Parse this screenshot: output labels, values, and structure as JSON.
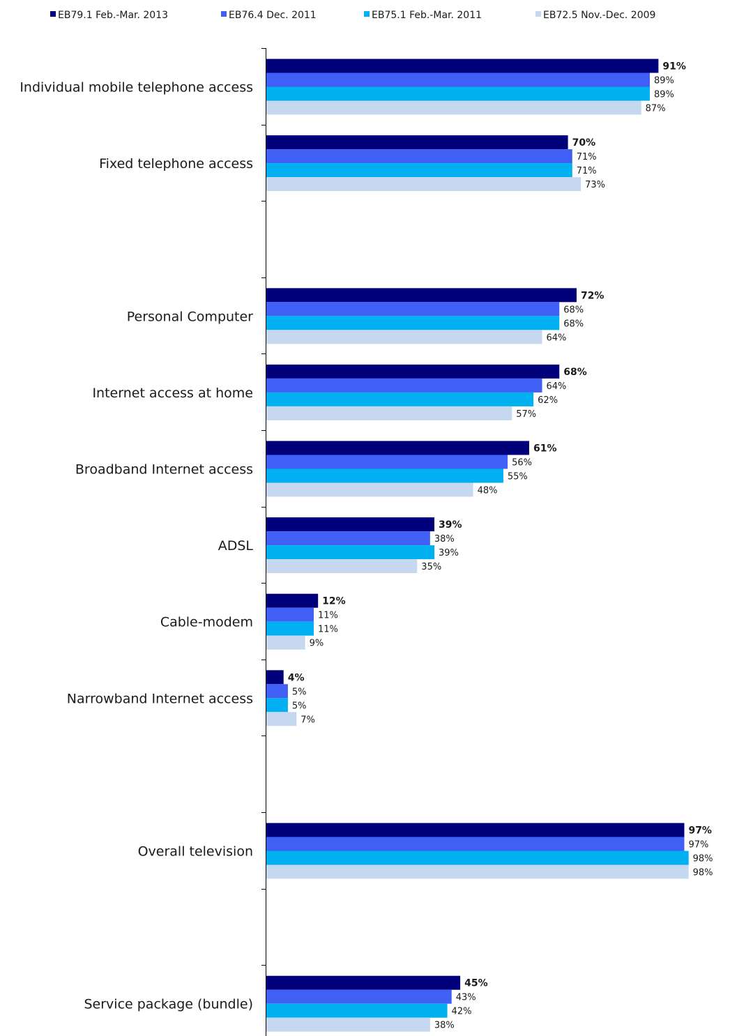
{
  "chart_data": {
    "type": "bar",
    "orientation": "horizontal",
    "legend_position": "top",
    "grid": false,
    "xlim": [
      0,
      100
    ],
    "series": [
      {
        "name": "EB79.1 Feb.-Mar. 2013",
        "color": "#00007a"
      },
      {
        "name": "EB76.4 Dec. 2011",
        "color": "#3f5ff5"
      },
      {
        "name": "EB75.1 Feb.-Mar. 2011",
        "color": "#00b0f0"
      },
      {
        "name": "EB72.5 Nov.-Dec. 2009",
        "color": "#c6d7f0"
      }
    ],
    "slots": [
      {
        "category": "Individual mobile telephone access",
        "values": [
          91,
          89,
          89,
          87
        ],
        "labels": [
          "91%",
          "89%",
          "89%",
          "87%"
        ]
      },
      {
        "category": "Fixed telephone access",
        "values": [
          70,
          71,
          71,
          73
        ],
        "labels": [
          "70%",
          "71%",
          "71%",
          "73%"
        ]
      },
      {
        "category": "",
        "values": null,
        "labels": null
      },
      {
        "category": "Personal Computer",
        "values": [
          72,
          68,
          68,
          64
        ],
        "labels": [
          "72%",
          "68%",
          "68%",
          "64%"
        ]
      },
      {
        "category": "Internet access at home",
        "values": [
          68,
          64,
          62,
          57
        ],
        "labels": [
          "68%",
          "64%",
          "62%",
          "57%"
        ]
      },
      {
        "category": "Broadband Internet access",
        "values": [
          61,
          56,
          55,
          48
        ],
        "labels": [
          "61%",
          "56%",
          "55%",
          "48%"
        ]
      },
      {
        "category": "ADSL",
        "values": [
          39,
          38,
          39,
          35
        ],
        "labels": [
          "39%",
          "38%",
          "39%",
          "35%"
        ]
      },
      {
        "category": "Cable-modem",
        "values": [
          12,
          11,
          11,
          9
        ],
        "labels": [
          "12%",
          "11%",
          "11%",
          "9%"
        ]
      },
      {
        "category": "Narrowband Internet access",
        "values": [
          4,
          5,
          5,
          7
        ],
        "labels": [
          "4%",
          "5%",
          "5%",
          "7%"
        ]
      },
      {
        "category": "",
        "values": null,
        "labels": null
      },
      {
        "category": "Overall television",
        "values": [
          97,
          97,
          98,
          98
        ],
        "labels": [
          "97%",
          "97%",
          "98%",
          "98%"
        ]
      },
      {
        "category": "",
        "values": null,
        "labels": null
      },
      {
        "category": "Service package (bundle)",
        "values": [
          45,
          43,
          42,
          38
        ],
        "labels": [
          "45%",
          "43%",
          "42%",
          "38%"
        ]
      }
    ]
  }
}
